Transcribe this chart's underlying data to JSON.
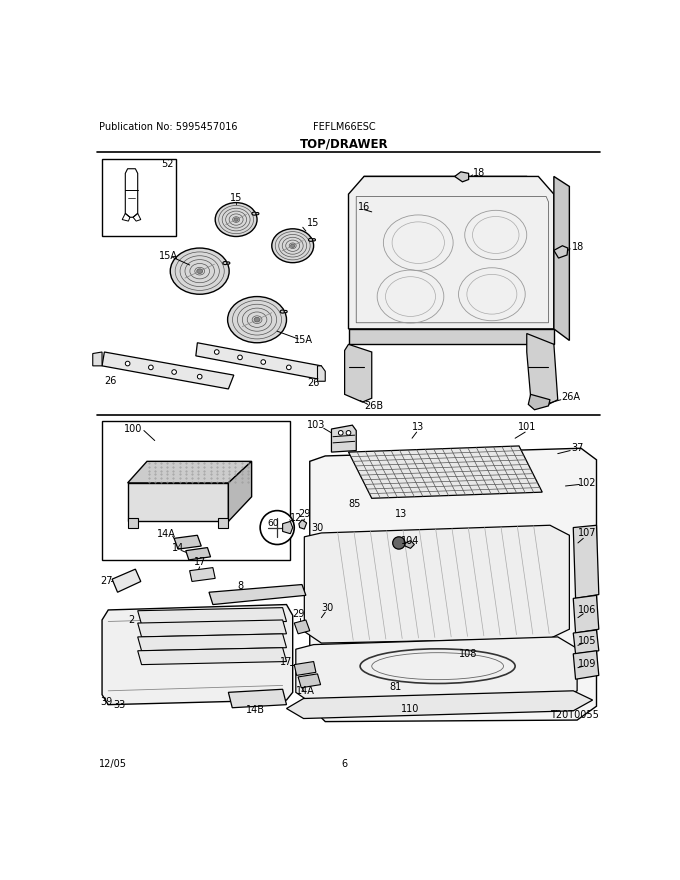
{
  "title": "TOP/DRAWER",
  "pub_no": "Publication No: 5995457016",
  "model": "FEFLM66ESC",
  "date": "12/05",
  "page": "6",
  "watermark": "T20T0055",
  "bg_color": "#ffffff",
  "line_color": "#000000",
  "fig_width": 6.8,
  "fig_height": 8.8,
  "dpi": 100
}
